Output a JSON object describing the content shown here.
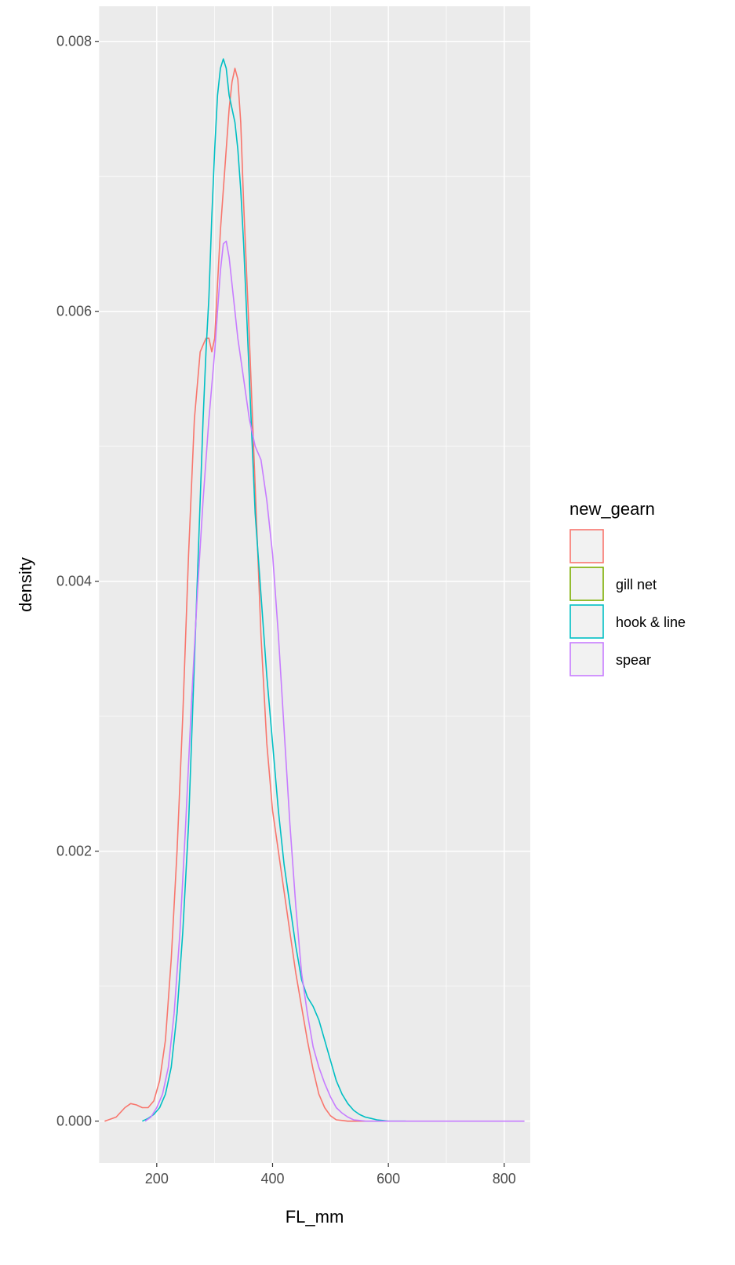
{
  "chart_data": {
    "type": "line",
    "xlabel": "FL_mm",
    "ylabel": "density",
    "xlim": [
      100,
      845
    ],
    "ylim": [
      -0.00031,
      0.00826
    ],
    "x_ticks": [
      200,
      400,
      600,
      800
    ],
    "x_minor_ticks": [
      100,
      300,
      500,
      700
    ],
    "x_tick_labels": [
      "200",
      "400",
      "600",
      "800"
    ],
    "y_ticks": [
      0.0,
      0.002,
      0.004,
      0.006,
      0.008
    ],
    "y_minor_ticks": [
      0.001,
      0.003,
      0.005,
      0.007
    ],
    "y_tick_labels": [
      "0.000",
      "0.002",
      "0.004",
      "0.006",
      "0.008"
    ],
    "grid": true,
    "panel_background": "#ebebeb",
    "legend": {
      "title": "new_gearn",
      "position": "right",
      "entries": [
        {
          "label": "",
          "color": "#f8766d"
        },
        {
          "label": "gill net",
          "color": "#7cae00"
        },
        {
          "label": "hook & line",
          "color": "#00bfc4"
        },
        {
          "label": "spear",
          "color": "#c77cff"
        }
      ]
    },
    "series": [
      {
        "color": "#f8766d",
        "x": [
          110,
          130,
          145,
          155,
          165,
          175,
          185,
          195,
          205,
          215,
          225,
          235,
          245,
          255,
          265,
          275,
          285,
          290,
          295,
          300,
          305,
          310,
          315,
          320,
          325,
          330,
          335,
          340,
          345,
          350,
          360,
          370,
          380,
          390,
          400,
          410,
          420,
          430,
          440,
          450,
          460,
          470,
          480,
          490,
          500,
          510,
          520,
          530,
          545,
          560
        ],
        "y": [
          0.0,
          3e-05,
          0.0001,
          0.00013,
          0.00012,
          0.0001,
          0.0001,
          0.00015,
          0.0003,
          0.0006,
          0.0012,
          0.002,
          0.003,
          0.0042,
          0.0052,
          0.0057,
          0.0058,
          0.0058,
          0.0057,
          0.0058,
          0.0062,
          0.0066,
          0.0069,
          0.0072,
          0.0075,
          0.0077,
          0.0078,
          0.00772,
          0.0074,
          0.0068,
          0.0058,
          0.0047,
          0.0036,
          0.0028,
          0.0023,
          0.002,
          0.0017,
          0.0014,
          0.0011,
          0.00085,
          0.0006,
          0.00038,
          0.0002,
          0.0001,
          4e-05,
          1e-05,
          5e-06,
          0.0,
          0.0,
          0.0
        ]
      },
      {
        "color": "#00bfc4",
        "x": [
          175,
          185,
          195,
          205,
          215,
          225,
          235,
          245,
          255,
          260,
          265,
          270,
          275,
          280,
          285,
          290,
          295,
          300,
          305,
          310,
          315,
          320,
          325,
          330,
          335,
          340,
          345,
          350,
          355,
          360,
          365,
          370,
          380,
          390,
          400,
          410,
          420,
          430,
          440,
          450,
          460,
          470,
          480,
          490,
          500,
          510,
          520,
          530,
          540,
          550,
          560,
          570,
          580,
          590,
          600,
          630
        ],
        "y": [
          0.0,
          2e-05,
          5e-05,
          0.0001,
          0.0002,
          0.0004,
          0.0008,
          0.0014,
          0.0022,
          0.0028,
          0.0034,
          0.004,
          0.0046,
          0.0052,
          0.0057,
          0.0061,
          0.0067,
          0.0072,
          0.0076,
          0.0078,
          0.00787,
          0.0078,
          0.0076,
          0.0075,
          0.0074,
          0.0072,
          0.0069,
          0.0065,
          0.006,
          0.0055,
          0.005,
          0.0045,
          0.0039,
          0.0033,
          0.0028,
          0.0023,
          0.0019,
          0.0016,
          0.0013,
          0.00105,
          0.00092,
          0.00085,
          0.00075,
          0.0006,
          0.00045,
          0.0003,
          0.0002,
          0.00013,
          8e-05,
          5e-05,
          3e-05,
          2e-05,
          1e-05,
          5e-06,
          0.0,
          0.0
        ]
      },
      {
        "color": "#c77cff",
        "x": [
          180,
          190,
          200,
          210,
          220,
          230,
          240,
          250,
          260,
          270,
          280,
          290,
          300,
          305,
          310,
          315,
          320,
          325,
          330,
          335,
          340,
          350,
          360,
          370,
          380,
          390,
          400,
          410,
          420,
          430,
          440,
          450,
          460,
          470,
          480,
          490,
          500,
          510,
          520,
          530,
          540,
          550,
          560,
          580,
          600,
          650,
          700,
          750,
          800,
          835
        ],
        "y": [
          0.0,
          3e-05,
          0.0001,
          0.0002,
          0.0004,
          0.0008,
          0.0014,
          0.0022,
          0.0031,
          0.0039,
          0.0046,
          0.0052,
          0.0057,
          0.006,
          0.0063,
          0.0065,
          0.00652,
          0.0064,
          0.0062,
          0.006,
          0.0058,
          0.0055,
          0.0052,
          0.005,
          0.0049,
          0.0046,
          0.0042,
          0.0036,
          0.0029,
          0.0022,
          0.0016,
          0.0011,
          0.0008,
          0.00055,
          0.0004,
          0.00028,
          0.00018,
          0.0001,
          6e-05,
          3e-05,
          1e-05,
          5e-06,
          0.0,
          0.0,
          0.0,
          0.0,
          0.0,
          0.0,
          0.0,
          0.0
        ]
      }
    ]
  }
}
